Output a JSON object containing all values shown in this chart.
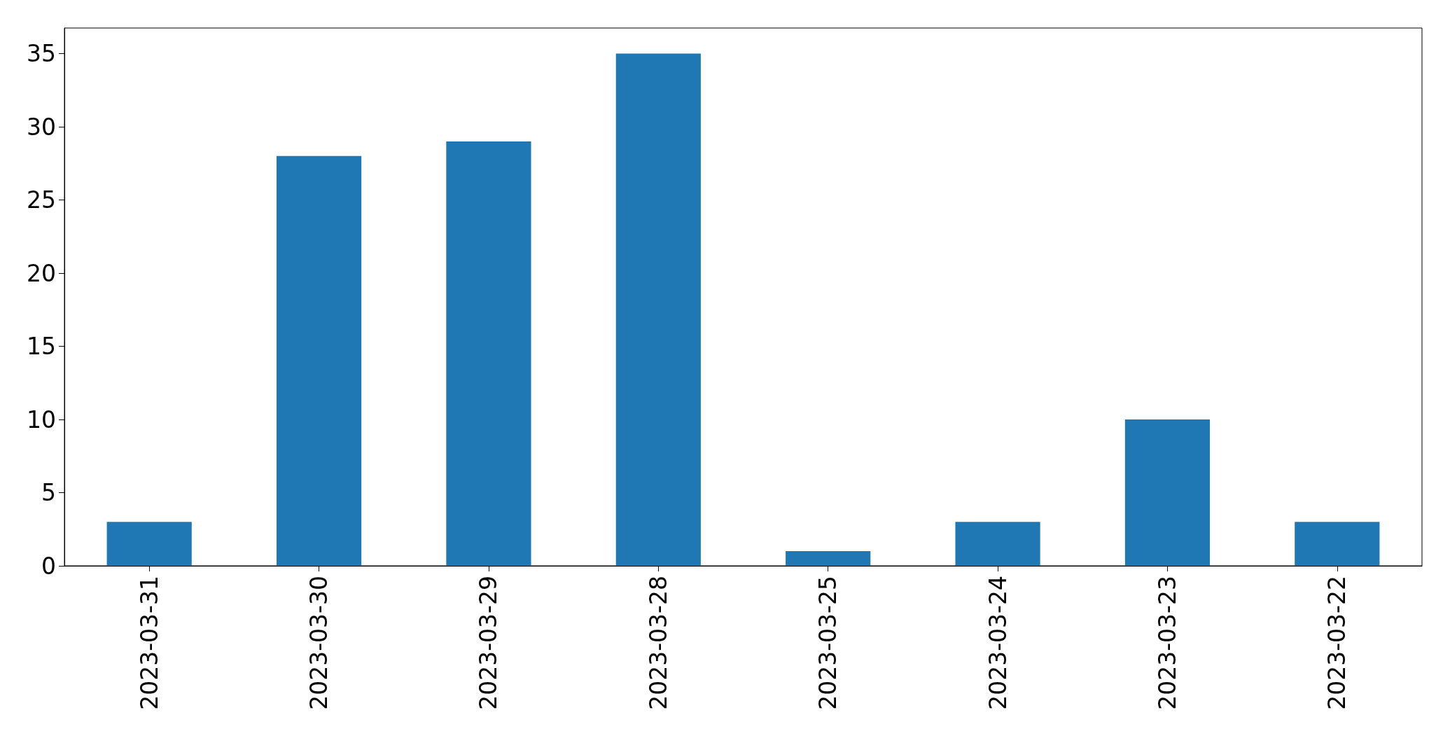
{
  "chart_data": {
    "type": "bar",
    "categories": [
      "2023-03-31",
      "2023-03-30",
      "2023-03-29",
      "2023-03-28",
      "2023-03-25",
      "2023-03-24",
      "2023-03-23",
      "2023-03-22"
    ],
    "values": [
      3,
      28,
      29,
      35,
      1,
      3,
      10,
      3
    ],
    "color": "#1f77b4",
    "ylim": [
      0,
      36.75
    ],
    "yticks": [
      0,
      5,
      10,
      15,
      20,
      25,
      30,
      35
    ],
    "grid": false
  }
}
